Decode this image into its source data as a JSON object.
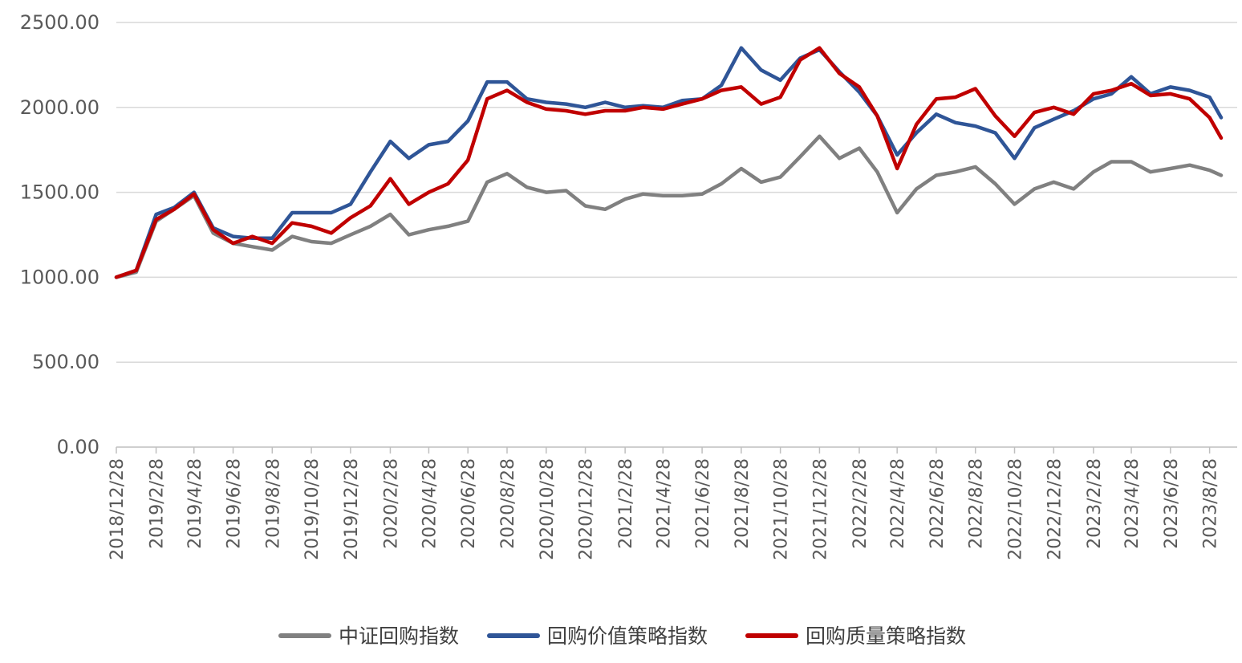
{
  "chart_data": {
    "type": "line",
    "title": "",
    "xlabel": "",
    "ylabel": "",
    "ylim": [
      0,
      2500
    ],
    "grid": true,
    "legend_position": "bottom",
    "y_ticks": [
      "0.00",
      "500.00",
      "1000.00",
      "1500.00",
      "2000.00",
      "2500.00"
    ],
    "x_ticks": [
      "2018/12/28",
      "2019/2/28",
      "2019/4/28",
      "2019/6/28",
      "2019/8/28",
      "2019/10/28",
      "2019/12/28",
      "2020/2/28",
      "2020/4/28",
      "2020/6/28",
      "2020/8/28",
      "2020/10/28",
      "2020/12/28",
      "2021/2/28",
      "2021/4/28",
      "2021/6/28",
      "2021/8/28",
      "2021/10/28",
      "2021/12/28",
      "2022/2/28",
      "2022/4/28",
      "2022/6/28",
      "2022/8/28",
      "2022/10/28",
      "2022/12/28",
      "2023/2/28",
      "2023/4/28",
      "2023/6/28",
      "2023/8/28"
    ],
    "x": [
      "2018/12/28",
      "2019/1/28",
      "2019/2/28",
      "2019/3/28",
      "2019/4/28",
      "2019/5/28",
      "2019/6/28",
      "2019/7/28",
      "2019/8/28",
      "2019/9/28",
      "2019/10/28",
      "2019/11/28",
      "2019/12/28",
      "2020/1/28",
      "2020/2/28",
      "2020/3/28",
      "2020/4/28",
      "2020/5/28",
      "2020/6/28",
      "2020/7/28",
      "2020/8/28",
      "2020/9/28",
      "2020/10/28",
      "2020/11/28",
      "2020/12/28",
      "2021/1/28",
      "2021/2/28",
      "2021/3/28",
      "2021/4/28",
      "2021/5/28",
      "2021/6/28",
      "2021/7/28",
      "2021/8/28",
      "2021/9/28",
      "2021/10/28",
      "2021/11/28",
      "2021/12/28",
      "2022/1/28",
      "2022/2/28",
      "2022/3/28",
      "2022/4/28",
      "2022/5/28",
      "2022/6/28",
      "2022/7/28",
      "2022/8/28",
      "2022/9/28",
      "2022/10/28",
      "2022/11/28",
      "2022/12/28",
      "2023/1/28",
      "2023/2/28",
      "2023/3/28",
      "2023/4/28",
      "2023/5/28",
      "2023/6/28",
      "2023/7/28",
      "2023/8/28",
      "2023/9/15"
    ],
    "series": [
      {
        "name": "中证回购指数",
        "color": "#808080",
        "values": [
          1000,
          1030,
          1330,
          1400,
          1480,
          1260,
          1200,
          1180,
          1160,
          1240,
          1210,
          1200,
          1250,
          1300,
          1370,
          1250,
          1280,
          1300,
          1330,
          1560,
          1610,
          1530,
          1500,
          1510,
          1420,
          1400,
          1460,
          1490,
          1480,
          1480,
          1490,
          1550,
          1640,
          1560,
          1590,
          1710,
          1830,
          1700,
          1760,
          1620,
          1380,
          1520,
          1600,
          1620,
          1650,
          1550,
          1430,
          1520,
          1560,
          1520,
          1620,
          1680,
          1680,
          1620,
          1640,
          1660,
          1630,
          1600
        ]
      },
      {
        "name": "回购价值策略指数",
        "color": "#2F5597",
        "values": [
          1000,
          1040,
          1370,
          1410,
          1500,
          1290,
          1240,
          1230,
          1230,
          1380,
          1380,
          1380,
          1430,
          1620,
          1800,
          1700,
          1780,
          1800,
          1920,
          2150,
          2150,
          2050,
          2030,
          2020,
          2000,
          2030,
          2000,
          2010,
          2000,
          2040,
          2050,
          2130,
          2350,
          2220,
          2160,
          2290,
          2340,
          2210,
          2090,
          1950,
          1720,
          1850,
          1960,
          1910,
          1890,
          1850,
          1700,
          1880,
          1930,
          1980,
          2050,
          2080,
          2180,
          2080,
          2120,
          2100,
          2060,
          1940
        ]
      },
      {
        "name": "回购质量策略指数",
        "color": "#C00000",
        "values": [
          1000,
          1040,
          1340,
          1400,
          1490,
          1280,
          1200,
          1240,
          1200,
          1320,
          1300,
          1260,
          1350,
          1420,
          1580,
          1430,
          1500,
          1550,
          1690,
          2050,
          2100,
          2030,
          1990,
          1980,
          1960,
          1980,
          1980,
          2000,
          1990,
          2020,
          2050,
          2100,
          2120,
          2020,
          2060,
          2280,
          2350,
          2200,
          2120,
          1950,
          1640,
          1900,
          2050,
          2060,
          2110,
          1950,
          1830,
          1970,
          2000,
          1960,
          2080,
          2100,
          2140,
          2070,
          2080,
          2050,
          1940,
          1820
        ]
      }
    ]
  }
}
